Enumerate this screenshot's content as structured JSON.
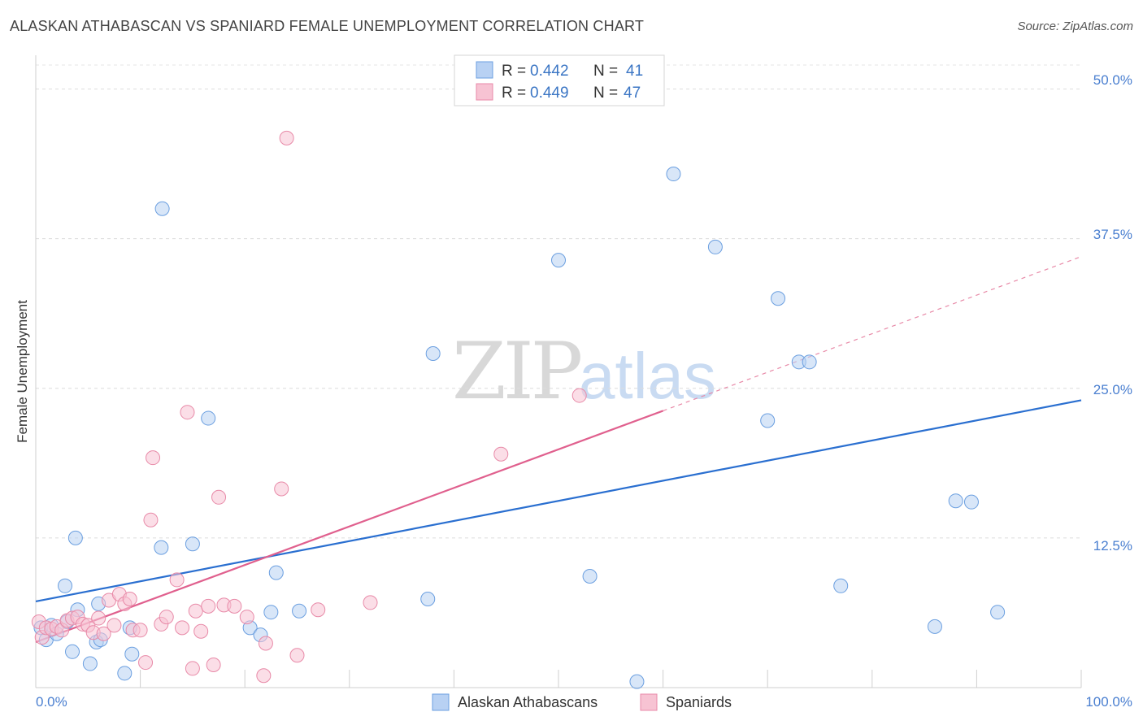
{
  "title": "ALASKAN ATHABASCAN VS SPANIARD FEMALE UNEMPLOYMENT CORRELATION CHART",
  "source": "Source: ZipAtlas.com",
  "watermark": {
    "left": "ZIP",
    "right": "atlas"
  },
  "chart_data": {
    "type": "scatter",
    "title": "ALASKAN ATHABASCAN VS SPANIARD FEMALE UNEMPLOYMENT CORRELATION CHART",
    "xlabel": "",
    "ylabel": "Female Unemployment",
    "xlim": [
      0,
      100
    ],
    "ylim": [
      0,
      52
    ],
    "x_tick_labels": {
      "min": "0.0%",
      "max": "100.0%"
    },
    "y_ticks": [
      12.5,
      25.0,
      37.5,
      50.0
    ],
    "y_tick_labels": [
      "12.5%",
      "25.0%",
      "37.5%",
      "50.0%"
    ],
    "legend": {
      "position": "top-center",
      "entries": [
        {
          "r_label": "R =",
          "r_value": "0.442",
          "n_label": "N =",
          "n_value": "41"
        },
        {
          "r_label": "R =",
          "r_value": "0.449",
          "n_label": "N =",
          "n_value": "47"
        }
      ]
    },
    "series": [
      {
        "name": "Alaskan Athabascans",
        "color": "#6b9fe0",
        "fill": "#b8d1f3",
        "line_color": "#2a6fd0",
        "trend": {
          "x0": 0,
          "y0": 7.2,
          "x1": 100,
          "y1": 24.0,
          "solid_to": 100
        },
        "points": [
          [
            0.5,
            5.0
          ],
          [
            1.0,
            4.0
          ],
          [
            1.5,
            5.2
          ],
          [
            2.0,
            4.5
          ],
          [
            3.0,
            5.5
          ],
          [
            2.8,
            8.5
          ],
          [
            3.5,
            3.0
          ],
          [
            3.8,
            12.5
          ],
          [
            4.0,
            6.5
          ],
          [
            5.2,
            2.0
          ],
          [
            5.8,
            3.8
          ],
          [
            6.2,
            4.0
          ],
          [
            6.0,
            7.0
          ],
          [
            8.5,
            1.2
          ],
          [
            9.0,
            5.0
          ],
          [
            9.2,
            2.8
          ],
          [
            12.0,
            11.7
          ],
          [
            12.1,
            40.0
          ],
          [
            15.0,
            12.0
          ],
          [
            16.5,
            22.5
          ],
          [
            20.5,
            5.0
          ],
          [
            21.5,
            4.4
          ],
          [
            22.5,
            6.3
          ],
          [
            23.0,
            9.6
          ],
          [
            25.2,
            6.4
          ],
          [
            37.5,
            7.4
          ],
          [
            38.0,
            27.9
          ],
          [
            50.0,
            35.7
          ],
          [
            53.0,
            9.3
          ],
          [
            57.5,
            0.5
          ],
          [
            61.0,
            42.9
          ],
          [
            65.0,
            36.8
          ],
          [
            70.0,
            22.3
          ],
          [
            71.0,
            32.5
          ],
          [
            73.0,
            27.2
          ],
          [
            74.0,
            27.2
          ],
          [
            77.0,
            8.5
          ],
          [
            86.0,
            5.1
          ],
          [
            88.0,
            15.6
          ],
          [
            89.5,
            15.5
          ],
          [
            92.0,
            6.3
          ]
        ]
      },
      {
        "name": "Spaniards",
        "color": "#e88aa8",
        "fill": "#f7c3d3",
        "line_color": "#e0608e",
        "trend": {
          "x0": 0,
          "y0": 3.8,
          "x1": 100,
          "y1": 36.0,
          "solid_to": 60
        },
        "points": [
          [
            0.3,
            5.5
          ],
          [
            0.6,
            4.2
          ],
          [
            1.0,
            5.0
          ],
          [
            1.5,
            4.9
          ],
          [
            2.0,
            5.1
          ],
          [
            2.5,
            4.8
          ],
          [
            3.0,
            5.6
          ],
          [
            3.5,
            5.8
          ],
          [
            4.0,
            5.9
          ],
          [
            4.5,
            5.3
          ],
          [
            5.0,
            5.2
          ],
          [
            5.5,
            4.6
          ],
          [
            6.0,
            5.8
          ],
          [
            6.5,
            4.5
          ],
          [
            7.0,
            7.3
          ],
          [
            7.5,
            5.2
          ],
          [
            8.0,
            7.8
          ],
          [
            8.5,
            7.0
          ],
          [
            9.0,
            7.4
          ],
          [
            9.3,
            4.8
          ],
          [
            10.0,
            4.8
          ],
          [
            10.5,
            2.1
          ],
          [
            11.0,
            14.0
          ],
          [
            11.2,
            19.2
          ],
          [
            12.0,
            5.3
          ],
          [
            12.5,
            5.9
          ],
          [
            13.5,
            9.0
          ],
          [
            14.5,
            23.0
          ],
          [
            15.0,
            1.6
          ],
          [
            15.3,
            6.4
          ],
          [
            15.8,
            4.7
          ],
          [
            16.5,
            6.8
          ],
          [
            17.0,
            1.9
          ],
          [
            17.5,
            15.9
          ],
          [
            18.0,
            6.9
          ],
          [
            19.0,
            6.8
          ],
          [
            20.2,
            5.9
          ],
          [
            21.8,
            1.0
          ],
          [
            22.0,
            3.7
          ],
          [
            23.5,
            16.6
          ],
          [
            24.0,
            45.9
          ],
          [
            25.0,
            2.7
          ],
          [
            27.0,
            6.5
          ],
          [
            32.0,
            7.1
          ],
          [
            44.5,
            19.5
          ],
          [
            52.0,
            24.4
          ],
          [
            14.0,
            5.0
          ]
        ]
      }
    ]
  }
}
